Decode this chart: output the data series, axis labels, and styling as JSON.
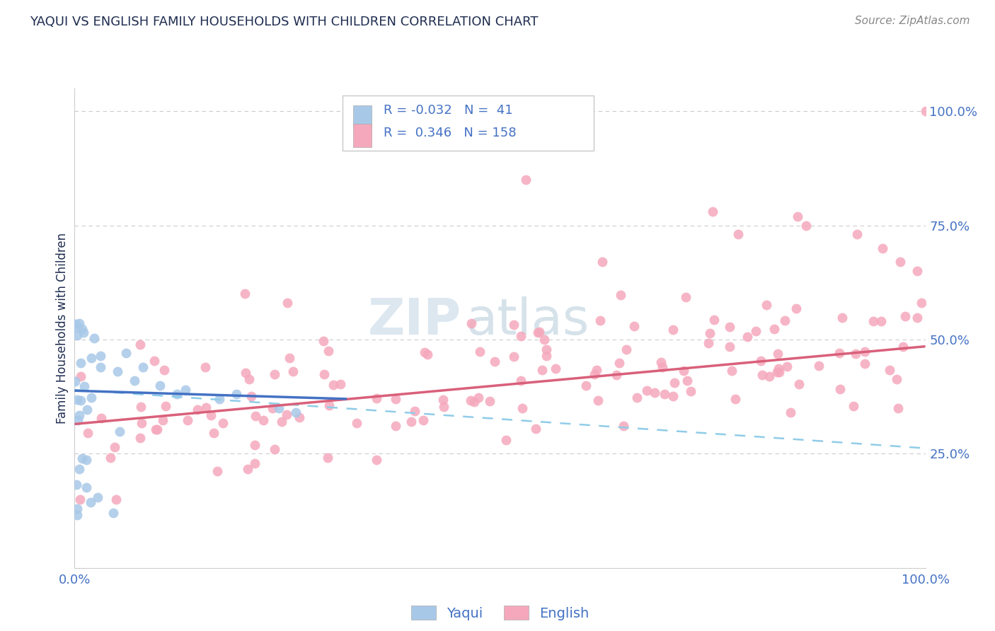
{
  "title": "YAQUI VS ENGLISH FAMILY HOUSEHOLDS WITH CHILDREN CORRELATION CHART",
  "source": "Source: ZipAtlas.com",
  "ylabel": "Family Households with Children",
  "yaqui_R": -0.032,
  "yaqui_N": 41,
  "english_R": 0.346,
  "english_N": 158,
  "yaqui_color": "#a8c8e8",
  "english_color": "#f5a8bc",
  "yaqui_line_color": "#4472c4",
  "english_line_color": "#d9607a",
  "dashed_line_color": "#90cce8",
  "axis_label_color": "#4472c4",
  "title_color": "#1f2d50",
  "background_color": "#ffffff",
  "plot_bg_color": "#ffffff",
  "grid_color": "#cccccc",
  "right_label_color": "#4472c4",
  "watermark": "ZIPatlas",
  "watermark_zip_color": "#c8d8e8",
  "watermark_atlas_color": "#a0b8c8",
  "xlim": [
    0.0,
    1.0
  ],
  "ylim": [
    0.0,
    1.05
  ],
  "yticks_right": [
    0.25,
    0.5,
    0.75,
    1.0
  ],
  "ytick_labels_right": [
    "25.0%",
    "50.0%",
    "75.0%",
    "100.0%"
  ],
  "xtick_labels": [
    "0.0%",
    "",
    "",
    "",
    "100.0%"
  ],
  "legend_label_color": "#4472c4",
  "legend_text_color": "#333355",
  "yaqui_line_x": [
    0.0,
    0.32
  ],
  "yaqui_line_y": [
    0.388,
    0.37
  ],
  "dashed_line_x": [
    0.0,
    1.0
  ],
  "dashed_line_y": [
    0.39,
    0.262
  ],
  "english_line_x": [
    0.0,
    1.0
  ],
  "english_line_y": [
    0.315,
    0.485
  ]
}
